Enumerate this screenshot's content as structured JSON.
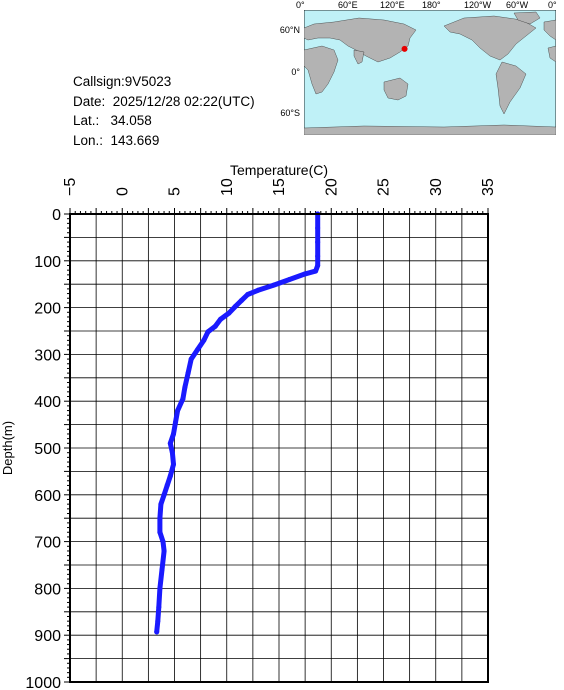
{
  "station": {
    "callsign": "Callsign:9V5023",
    "date": "Date:  2025/12/28 02:22(UTC)",
    "lat": "Lat.:   34.058",
    "lon": "Lon.:  143.669"
  },
  "map": {
    "lon_labels": [
      "0°",
      "60°E",
      "120°E",
      "180°",
      "120°W",
      "60°W",
      "0°"
    ],
    "lat_labels": [
      "60°N",
      "0°",
      "60°S"
    ],
    "ocean_color": "#bff1f7",
    "land_color": "#b3b3b3",
    "marker_color": "#e60000",
    "marker_lat": 34.058,
    "marker_lon": 143.669
  },
  "chart_data": {
    "type": "line",
    "xlabel": "Temperature(C)",
    "ylabel": "Depth(m)",
    "xlim": [
      -5,
      35
    ],
    "ylim": [
      1000,
      0
    ],
    "x_ticks": [
      "-5",
      "0",
      "5",
      "10",
      "15",
      "20",
      "25",
      "30",
      "35"
    ],
    "y_ticks": [
      "0",
      "100",
      "200",
      "300",
      "400",
      "500",
      "600",
      "700",
      "800",
      "900",
      "1000"
    ],
    "grid": true,
    "line_color": "#1a1aff",
    "series": [
      {
        "points": [
          [
            18.7,
            0
          ],
          [
            18.7,
            30
          ],
          [
            18.7,
            60
          ],
          [
            18.7,
            90
          ],
          [
            18.7,
            110
          ],
          [
            18.5,
            122
          ],
          [
            17.5,
            128
          ],
          [
            16.0,
            140
          ],
          [
            14.5,
            152
          ],
          [
            13.0,
            163
          ],
          [
            12.0,
            172
          ],
          [
            11.4,
            185
          ],
          [
            10.8,
            198
          ],
          [
            10.2,
            212
          ],
          [
            9.4,
            225
          ],
          [
            8.9,
            240
          ],
          [
            8.2,
            252
          ],
          [
            7.8,
            270
          ],
          [
            7.2,
            290
          ],
          [
            6.6,
            310
          ],
          [
            6.3,
            340
          ],
          [
            6.0,
            370
          ],
          [
            5.8,
            395
          ],
          [
            5.3,
            420
          ],
          [
            5.1,
            445
          ],
          [
            4.9,
            470
          ],
          [
            4.6,
            490
          ],
          [
            4.8,
            510
          ],
          [
            4.9,
            535
          ],
          [
            4.6,
            560
          ],
          [
            4.3,
            580
          ],
          [
            4.0,
            600
          ],
          [
            3.7,
            620
          ],
          [
            3.6,
            650
          ],
          [
            3.6,
            680
          ],
          [
            3.9,
            700
          ],
          [
            4.0,
            720
          ],
          [
            3.8,
            760
          ],
          [
            3.6,
            800
          ],
          [
            3.5,
            840
          ],
          [
            3.4,
            870
          ],
          [
            3.3,
            893
          ]
        ]
      }
    ]
  }
}
